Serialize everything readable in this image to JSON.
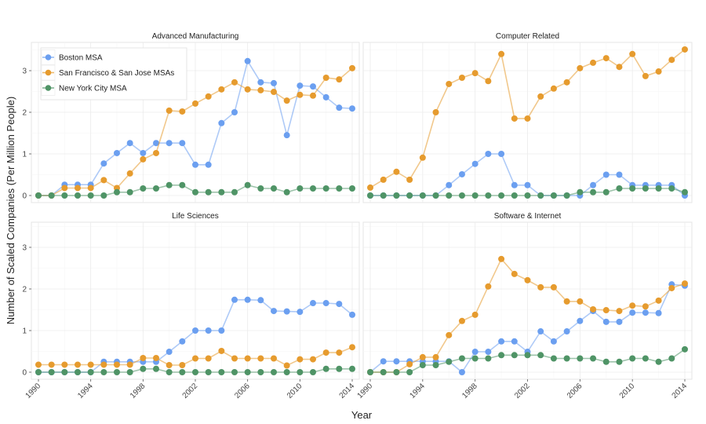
{
  "chart_data": {
    "type": "line",
    "layout": "facet-2x2",
    "xlabel": "Year",
    "ylabel": "Number of Scaled Companies (Per Million People)",
    "ylim": [
      -0.15,
      3.7
    ],
    "yticks": [
      0,
      1,
      2,
      3
    ],
    "xticks": [
      1990,
      1994,
      1998,
      2002,
      2006,
      2010,
      2014
    ],
    "grid": true,
    "legend_position": "inside top-left of first panel",
    "colors": {
      "Boston MSA": "#6b9ff0",
      "San Francisco & San Jose MSAs": "#e69b2e",
      "New York City MSA": "#4f9466"
    },
    "legend": [
      "Boston MSA",
      "San Francisco & San Jose MSAs",
      "New York City MSA"
    ],
    "x": [
      1990,
      1991,
      1992,
      1993,
      1994,
      1995,
      1996,
      1997,
      1998,
      1999,
      2000,
      2001,
      2002,
      2003,
      2004,
      2005,
      2006,
      2007,
      2008,
      2009,
      2010,
      2011,
      2012,
      2013,
      2014
    ],
    "panels": [
      {
        "title": "Advanced Manufacturing",
        "series": [
          {
            "name": "Boston MSA",
            "values": [
              0,
              0,
              0.26,
              0.26,
              0.26,
              0.77,
              1.02,
              1.26,
              1.02,
              1.26,
              1.26,
              1.26,
              0.74,
              0.74,
              1.74,
              2.0,
              3.23,
              2.72,
              2.7,
              1.45,
              2.64,
              2.62,
              2.36,
              2.11,
              2.09
            ]
          },
          {
            "name": "San Francisco & San Jose MSAs",
            "values": [
              0,
              0,
              0.18,
              0.18,
              0.18,
              0.37,
              0.18,
              0.53,
              0.87,
              1.02,
              2.04,
              2.02,
              2.21,
              2.38,
              2.55,
              2.72,
              2.55,
              2.53,
              2.49,
              2.28,
              2.42,
              2.4,
              2.83,
              2.79,
              3.06
            ]
          },
          {
            "name": "New York City MSA",
            "values": [
              0,
              0,
              0,
              0,
              0,
              0,
              0.08,
              0.08,
              0.17,
              0.17,
              0.25,
              0.25,
              0.08,
              0.08,
              0.08,
              0.08,
              0.25,
              0.17,
              0.17,
              0.08,
              0.17,
              0.17,
              0.17,
              0.17,
              0.17
            ]
          }
        ]
      },
      {
        "title": "Computer Related",
        "series": [
          {
            "name": "Boston MSA",
            "values": [
              0,
              0,
              0,
              0,
              0,
              0,
              0.25,
              0.51,
              0.76,
              1.0,
              1.0,
              0.25,
              0.25,
              0,
              0,
              0,
              0,
              0.25,
              0.5,
              0.5,
              0.25,
              0.25,
              0.25,
              0.25,
              0
            ]
          },
          {
            "name": "San Francisco & San Jose MSAs",
            "values": [
              0.19,
              0.38,
              0.57,
              0.38,
              0.91,
              2.0,
              2.68,
              2.83,
              2.94,
              2.75,
              3.4,
              1.85,
              1.85,
              2.38,
              2.57,
              2.72,
              3.06,
              3.19,
              3.3,
              3.09,
              3.4,
              2.87,
              2.98,
              3.26,
              3.51
            ]
          },
          {
            "name": "New York City MSA",
            "values": [
              0,
              0,
              0,
              0,
              0,
              0,
              0,
              0,
              0,
              0,
              0,
              0,
              0,
              0,
              0,
              0,
              0.08,
              0.08,
              0.08,
              0.17,
              0.17,
              0.17,
              0.17,
              0.17,
              0.08
            ]
          }
        ]
      },
      {
        "title": "Life Sciences",
        "series": [
          {
            "name": "Boston MSA",
            "values": [
              0,
              0,
              0,
              0,
              0,
              0.25,
              0.25,
              0.25,
              0.25,
              0.25,
              0.49,
              0.74,
              1.0,
              1.0,
              1.0,
              1.74,
              1.74,
              1.73,
              1.47,
              1.46,
              1.45,
              1.66,
              1.66,
              1.64,
              1.38
            ]
          },
          {
            "name": "San Francisco & San Jose MSAs",
            "values": [
              0.18,
              0.18,
              0.18,
              0.18,
              0.18,
              0.18,
              0.18,
              0.18,
              0.34,
              0.34,
              0.17,
              0.17,
              0.33,
              0.33,
              0.51,
              0.33,
              0.33,
              0.33,
              0.33,
              0.16,
              0.31,
              0.31,
              0.47,
              0.47,
              0.6
            ]
          },
          {
            "name": "New York City MSA",
            "values": [
              0,
              0,
              0,
              0,
              0,
              0,
              0,
              0,
              0.08,
              0.08,
              0,
              0,
              0,
              0,
              0,
              0,
              0,
              0,
              0,
              0,
              0,
              0,
              0.08,
              0.08,
              0.08
            ]
          }
        ]
      },
      {
        "title": "Software & Internet",
        "series": [
          {
            "name": "Boston MSA",
            "values": [
              0,
              0.26,
              0.26,
              0.26,
              0.26,
              0.26,
              0.26,
              0,
              0.49,
              0.49,
              0.74,
              0.74,
              0.49,
              0.98,
              0.74,
              0.98,
              1.23,
              1.47,
              1.21,
              1.21,
              1.43,
              1.43,
              1.42,
              2.11,
              2.08
            ]
          },
          {
            "name": "San Francisco & San Jose MSAs",
            "values": [
              0,
              0,
              0,
              0.19,
              0.36,
              0.36,
              0.89,
              1.23,
              1.38,
              2.06,
              2.72,
              2.36,
              2.21,
              2.04,
              2.04,
              1.7,
              1.7,
              1.51,
              1.49,
              1.47,
              1.6,
              1.58,
              1.72,
              2.02,
              2.13
            ]
          },
          {
            "name": "New York City MSA",
            "values": [
              0,
              0,
              0,
              0,
              0.17,
              0.17,
              0.25,
              0.33,
              0.33,
              0.33,
              0.41,
              0.41,
              0.41,
              0.41,
              0.33,
              0.33,
              0.33,
              0.33,
              0.25,
              0.25,
              0.33,
              0.33,
              0.25,
              0.33,
              0.55
            ]
          }
        ]
      }
    ]
  }
}
